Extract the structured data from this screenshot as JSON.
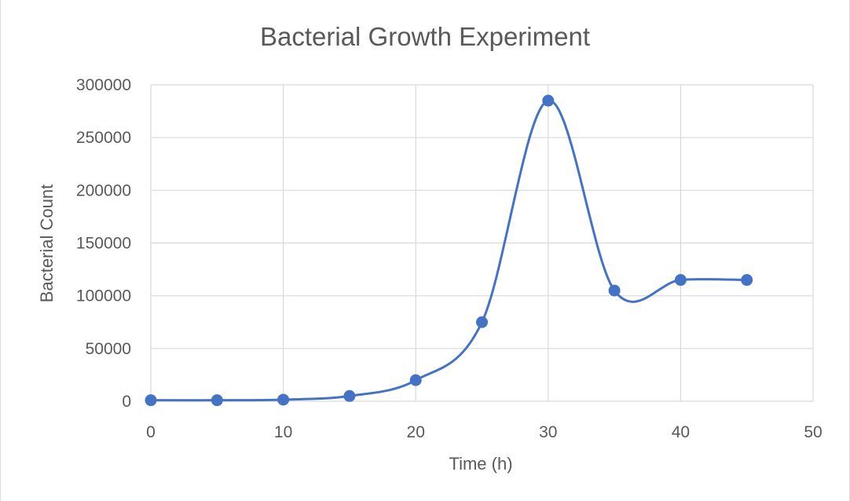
{
  "chart_data": {
    "type": "scatter",
    "title": "Bacterial Growth Experiment",
    "xlabel": "Time (h)",
    "ylabel": "Bacterial Count",
    "xlim": [
      0,
      50
    ],
    "ylim": [
      0,
      300000
    ],
    "xticks": [
      0,
      10,
      20,
      30,
      40,
      50
    ],
    "yticks": [
      0,
      50000,
      100000,
      150000,
      200000,
      250000,
      300000
    ],
    "xtick_labels": [
      "0",
      "10",
      "20",
      "30",
      "40",
      "50"
    ],
    "ytick_labels": [
      "0",
      "50000",
      "100000",
      "150000",
      "200000",
      "250000",
      "300000"
    ],
    "grid": true,
    "legend": "none",
    "smoothed_line": true,
    "series": [
      {
        "name": "Bacterial Count",
        "color": "#4472c4",
        "x": [
          0,
          5,
          10,
          15,
          20,
          25,
          30,
          35,
          40,
          45
        ],
        "y": [
          1000,
          1000,
          1500,
          5000,
          20000,
          75000,
          285000,
          105000,
          115000,
          115000
        ]
      }
    ]
  }
}
